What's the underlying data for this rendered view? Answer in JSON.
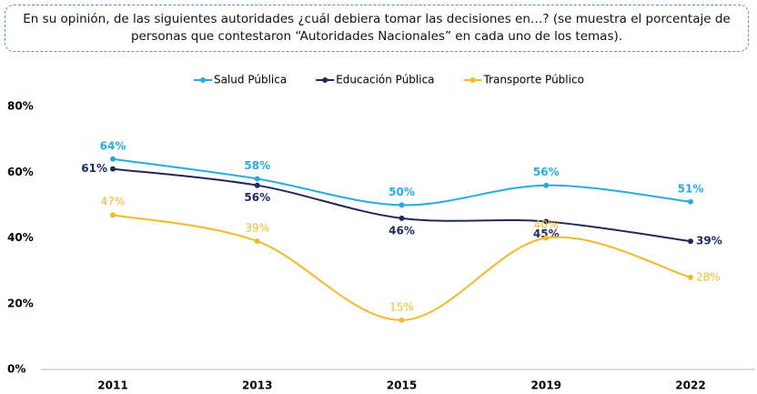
{
  "chart_data": {
    "type": "line",
    "title": "En su opinión, de las siguientes autoridades ¿cuál debiera tomar las decisiones en…? (se muestra el porcentaje de personas que contestaron “Autoridades Nacionales” en cada uno de los temas).",
    "categories": [
      "2011",
      "2013",
      "2015",
      "2019",
      "2022"
    ],
    "series": [
      {
        "name": "Salud Pública",
        "color": "#29abe2",
        "values": [
          64,
          58,
          50,
          56,
          51
        ],
        "value_labels": [
          "64%",
          "58%",
          "50%",
          "56%",
          "51%"
        ]
      },
      {
        "name": "Educación Pública",
        "color": "#1f2a5c",
        "values": [
          61,
          56,
          46,
          45,
          39
        ],
        "value_labels": [
          "61%",
          "56%",
          "46%",
          "45%",
          "39%"
        ]
      },
      {
        "name": "Transporte Público",
        "color": "#f4b92a",
        "values": [
          47,
          39,
          15,
          40,
          28
        ],
        "value_labels": [
          "47%",
          "39%",
          "15%",
          "40%",
          "28%"
        ]
      }
    ],
    "ylim": [
      0,
      80
    ],
    "yticks": [
      {
        "value": 0,
        "label": "0%"
      },
      {
        "value": 20,
        "label": "20%"
      },
      {
        "value": 40,
        "label": "40%"
      },
      {
        "value": 60,
        "label": "60%"
      },
      {
        "value": 80,
        "label": "80%"
      }
    ],
    "legend": "top"
  }
}
